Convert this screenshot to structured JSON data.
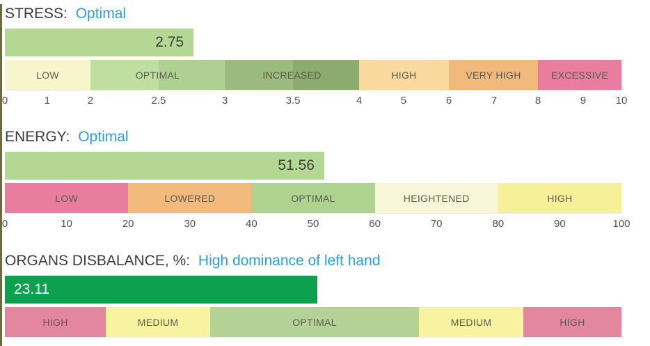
{
  "colors": {
    "accent_blue": "#2d9ed9",
    "title_dark": "#3b3b3b",
    "left_border_olive": "#6b6a45",
    "pink": "#e87d9f",
    "orange": "#f1b97c",
    "light_orange": "#fad99e",
    "pale_yellow": "#f8f5cd",
    "yellow": "#f6f098",
    "cream": "#f8f6d8",
    "light_green": "#b5d794",
    "dark_green": "#0ba14e"
  },
  "chart_data": [
    {
      "type": "bar",
      "title": "STRESS",
      "status": "Optimal",
      "value": 2.75,
      "scale_ticks": [
        0,
        1,
        2,
        2.5,
        3,
        3.5,
        4,
        5,
        6,
        7,
        8,
        9,
        10
      ],
      "xlim": [
        0,
        10
      ],
      "zones": [
        {
          "label": "LOW",
          "from": 0,
          "to": 2
        },
        {
          "label": "OPTIMAL",
          "from": 2,
          "to": 3
        },
        {
          "label": "INCREASED",
          "from": 3,
          "to": 4
        },
        {
          "label": "HIGH",
          "from": 4,
          "to": 6
        },
        {
          "label": "VERY HIGH",
          "from": 6,
          "to": 8
        },
        {
          "label": "EXCESSIVE",
          "from": 8,
          "to": 10
        }
      ]
    },
    {
      "type": "bar",
      "title": "ENERGY",
      "status": "Optimal",
      "value": 51.56,
      "scale_ticks": [
        0,
        10,
        20,
        30,
        40,
        50,
        60,
        70,
        80,
        90,
        100
      ],
      "xlim": [
        0,
        100
      ],
      "zones": [
        {
          "label": "LOW",
          "from": 0,
          "to": 20
        },
        {
          "label": "LOWERED",
          "from": 20,
          "to": 40
        },
        {
          "label": "OPTIMAL",
          "from": 40,
          "to": 60
        },
        {
          "label": "HEIGHTENED",
          "from": 60,
          "to": 80
        },
        {
          "label": "HIGH",
          "from": 80,
          "to": 100
        }
      ]
    },
    {
      "type": "bar",
      "title": "ORGANS DISBALANCE, %",
      "status": "High dominance of left hand",
      "value": 23.11,
      "scale_ticks": [],
      "zones": [
        {
          "label": "HIGH"
        },
        {
          "label": "MEDIUM"
        },
        {
          "label": "OPTIMAL"
        },
        {
          "label": "MEDIUM"
        },
        {
          "label": "HIGH"
        }
      ]
    }
  ],
  "gauges": [
    {
      "title": "STRESS:",
      "status": "Optimal",
      "value": "2.75",
      "value_bar": {
        "width_pct": 30.6,
        "color": "#b5d794",
        "text_color": "#3f4038",
        "align": "right"
      },
      "segments": [
        {
          "width_pct": 13.88,
          "color": "#f8f5cd"
        },
        {
          "width_pct": 11.06,
          "color": "#bedf9f"
        },
        {
          "width_pct": 10.73,
          "color": "#aed193"
        },
        {
          "width_pct": 11.06,
          "color": "#9bbb7e"
        },
        {
          "width_pct": 10.72,
          "color": "#8bab6f"
        },
        {
          "width_pct": 14.56,
          "color": "#fad99e"
        },
        {
          "width_pct": 14.45,
          "color": "#f1b97c"
        },
        {
          "width_pct": 13.54,
          "color": "#e87d9f"
        }
      ],
      "zone_labels": [
        {
          "text": "LOW",
          "left_pct": 0,
          "width_pct": 13.88
        },
        {
          "text": "OPTIMAL",
          "left_pct": 13.88,
          "width_pct": 21.79
        },
        {
          "text": "INCREASED",
          "left_pct": 35.67,
          "width_pct": 21.78
        },
        {
          "text": "HIGH",
          "left_pct": 57.45,
          "width_pct": 14.56
        },
        {
          "text": "VERY HIGH",
          "left_pct": 72.01,
          "width_pct": 14.45
        },
        {
          "text": "EXCESSIVE",
          "left_pct": 86.46,
          "width_pct": 13.54
        }
      ],
      "ticks": [
        {
          "label": "0",
          "pos_pct": 0
        },
        {
          "label": "1",
          "pos_pct": 6.88
        },
        {
          "label": "2",
          "pos_pct": 13.88
        },
        {
          "label": "2.5",
          "pos_pct": 24.94
        },
        {
          "label": "3",
          "pos_pct": 35.67
        },
        {
          "label": "3.5",
          "pos_pct": 46.73
        },
        {
          "label": "4",
          "pos_pct": 57.45
        },
        {
          "label": "5",
          "pos_pct": 64.67
        },
        {
          "label": "6",
          "pos_pct": 72.01
        },
        {
          "label": "7",
          "pos_pct": 79.35
        },
        {
          "label": "8",
          "pos_pct": 86.46
        },
        {
          "label": "9",
          "pos_pct": 93.79
        },
        {
          "label": "10",
          "pos_pct": 100
        }
      ]
    },
    {
      "title": "ENERGY:",
      "status": "Optimal",
      "value": "51.56",
      "value_bar": {
        "width_pct": 51.8,
        "color": "#b4d893",
        "text_color": "#3f4038",
        "align": "right"
      },
      "segments": [
        {
          "width_pct": 20,
          "color": "#e87d9f"
        },
        {
          "width_pct": 20,
          "color": "#f2ba7d"
        },
        {
          "width_pct": 20,
          "color": "#aed28f"
        },
        {
          "width_pct": 20,
          "color": "#f8f6d8"
        },
        {
          "width_pct": 20,
          "color": "#f6f098"
        }
      ],
      "zone_labels": [
        {
          "text": "LOW",
          "left_pct": 0,
          "width_pct": 20
        },
        {
          "text": "LOWERED",
          "left_pct": 20,
          "width_pct": 20
        },
        {
          "text": "OPTIMAL",
          "left_pct": 40,
          "width_pct": 20
        },
        {
          "text": "HEIGHTENED",
          "left_pct": 60,
          "width_pct": 20
        },
        {
          "text": "HIGH",
          "left_pct": 80,
          "width_pct": 20
        }
      ],
      "ticks": [
        {
          "label": "0",
          "pos_pct": 0
        },
        {
          "label": "10",
          "pos_pct": 10
        },
        {
          "label": "20",
          "pos_pct": 20
        },
        {
          "label": "30",
          "pos_pct": 30
        },
        {
          "label": "40",
          "pos_pct": 40
        },
        {
          "label": "50",
          "pos_pct": 50
        },
        {
          "label": "60",
          "pos_pct": 60
        },
        {
          "label": "70",
          "pos_pct": 70
        },
        {
          "label": "80",
          "pos_pct": 80
        },
        {
          "label": "90",
          "pos_pct": 90
        },
        {
          "label": "100",
          "pos_pct": 100
        }
      ]
    },
    {
      "title": "ORGANS DISBALANCE, %:",
      "status": "High dominance of left hand",
      "value": "23.11",
      "value_bar": {
        "width_pct": 50.7,
        "color": "#0ba14e",
        "text_color": "#ffffff",
        "align": "left"
      },
      "segments": [
        {
          "width_pct": 16.37,
          "color": "#e3879f"
        },
        {
          "width_pct": 16.93,
          "color": "#f7f3a1"
        },
        {
          "width_pct": 33.86,
          "color": "#b4d295"
        },
        {
          "width_pct": 16.93,
          "color": "#f7f3a1"
        },
        {
          "width_pct": 15.91,
          "color": "#e3879f"
        }
      ],
      "zone_labels": [
        {
          "text": "HIGH",
          "left_pct": 0,
          "width_pct": 16.37
        },
        {
          "text": "MEDIUM",
          "left_pct": 16.37,
          "width_pct": 16.93
        },
        {
          "text": "OPTIMAL",
          "left_pct": 33.3,
          "width_pct": 33.86
        },
        {
          "text": "MEDIUM",
          "left_pct": 67.16,
          "width_pct": 16.93
        },
        {
          "text": "HIGH",
          "left_pct": 84.09,
          "width_pct": 15.91
        }
      ],
      "ticks": []
    }
  ]
}
